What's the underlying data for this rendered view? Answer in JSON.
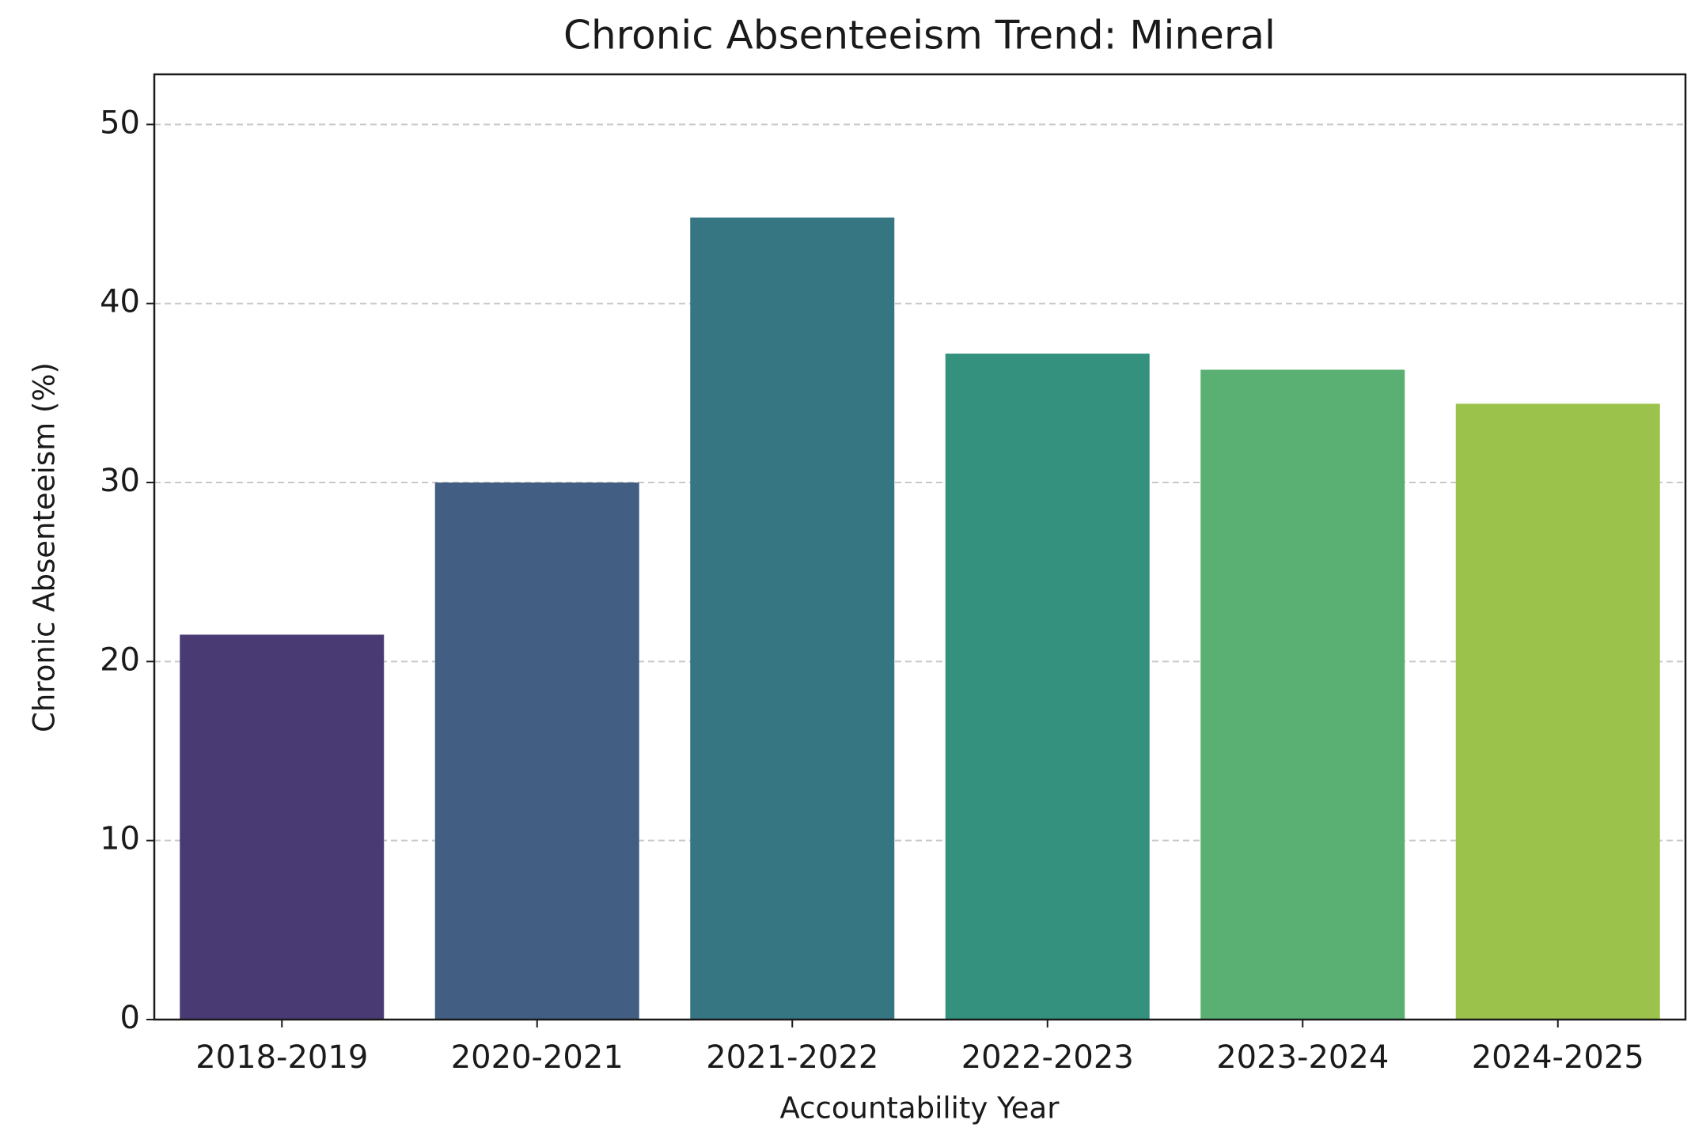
{
  "chart_data": {
    "type": "bar",
    "title": "Chronic Absenteeism Trend: Mineral",
    "xlabel": "Accountability Year",
    "ylabel": "Chronic Absenteeism (%)",
    "categories": [
      "2018-2019",
      "2020-2021",
      "2021-2022",
      "2022-2023",
      "2023-2024",
      "2024-2025"
    ],
    "values": [
      21.5,
      30.0,
      44.8,
      37.2,
      36.3,
      34.4
    ],
    "colors": [
      "#4a3a73",
      "#425e82",
      "#357682",
      "#33917e",
      "#5ab072",
      "#9bc34c"
    ],
    "ylim": [
      0,
      52.8
    ],
    "yticks": [
      0,
      10,
      20,
      30,
      40,
      50
    ],
    "grid": true
  }
}
